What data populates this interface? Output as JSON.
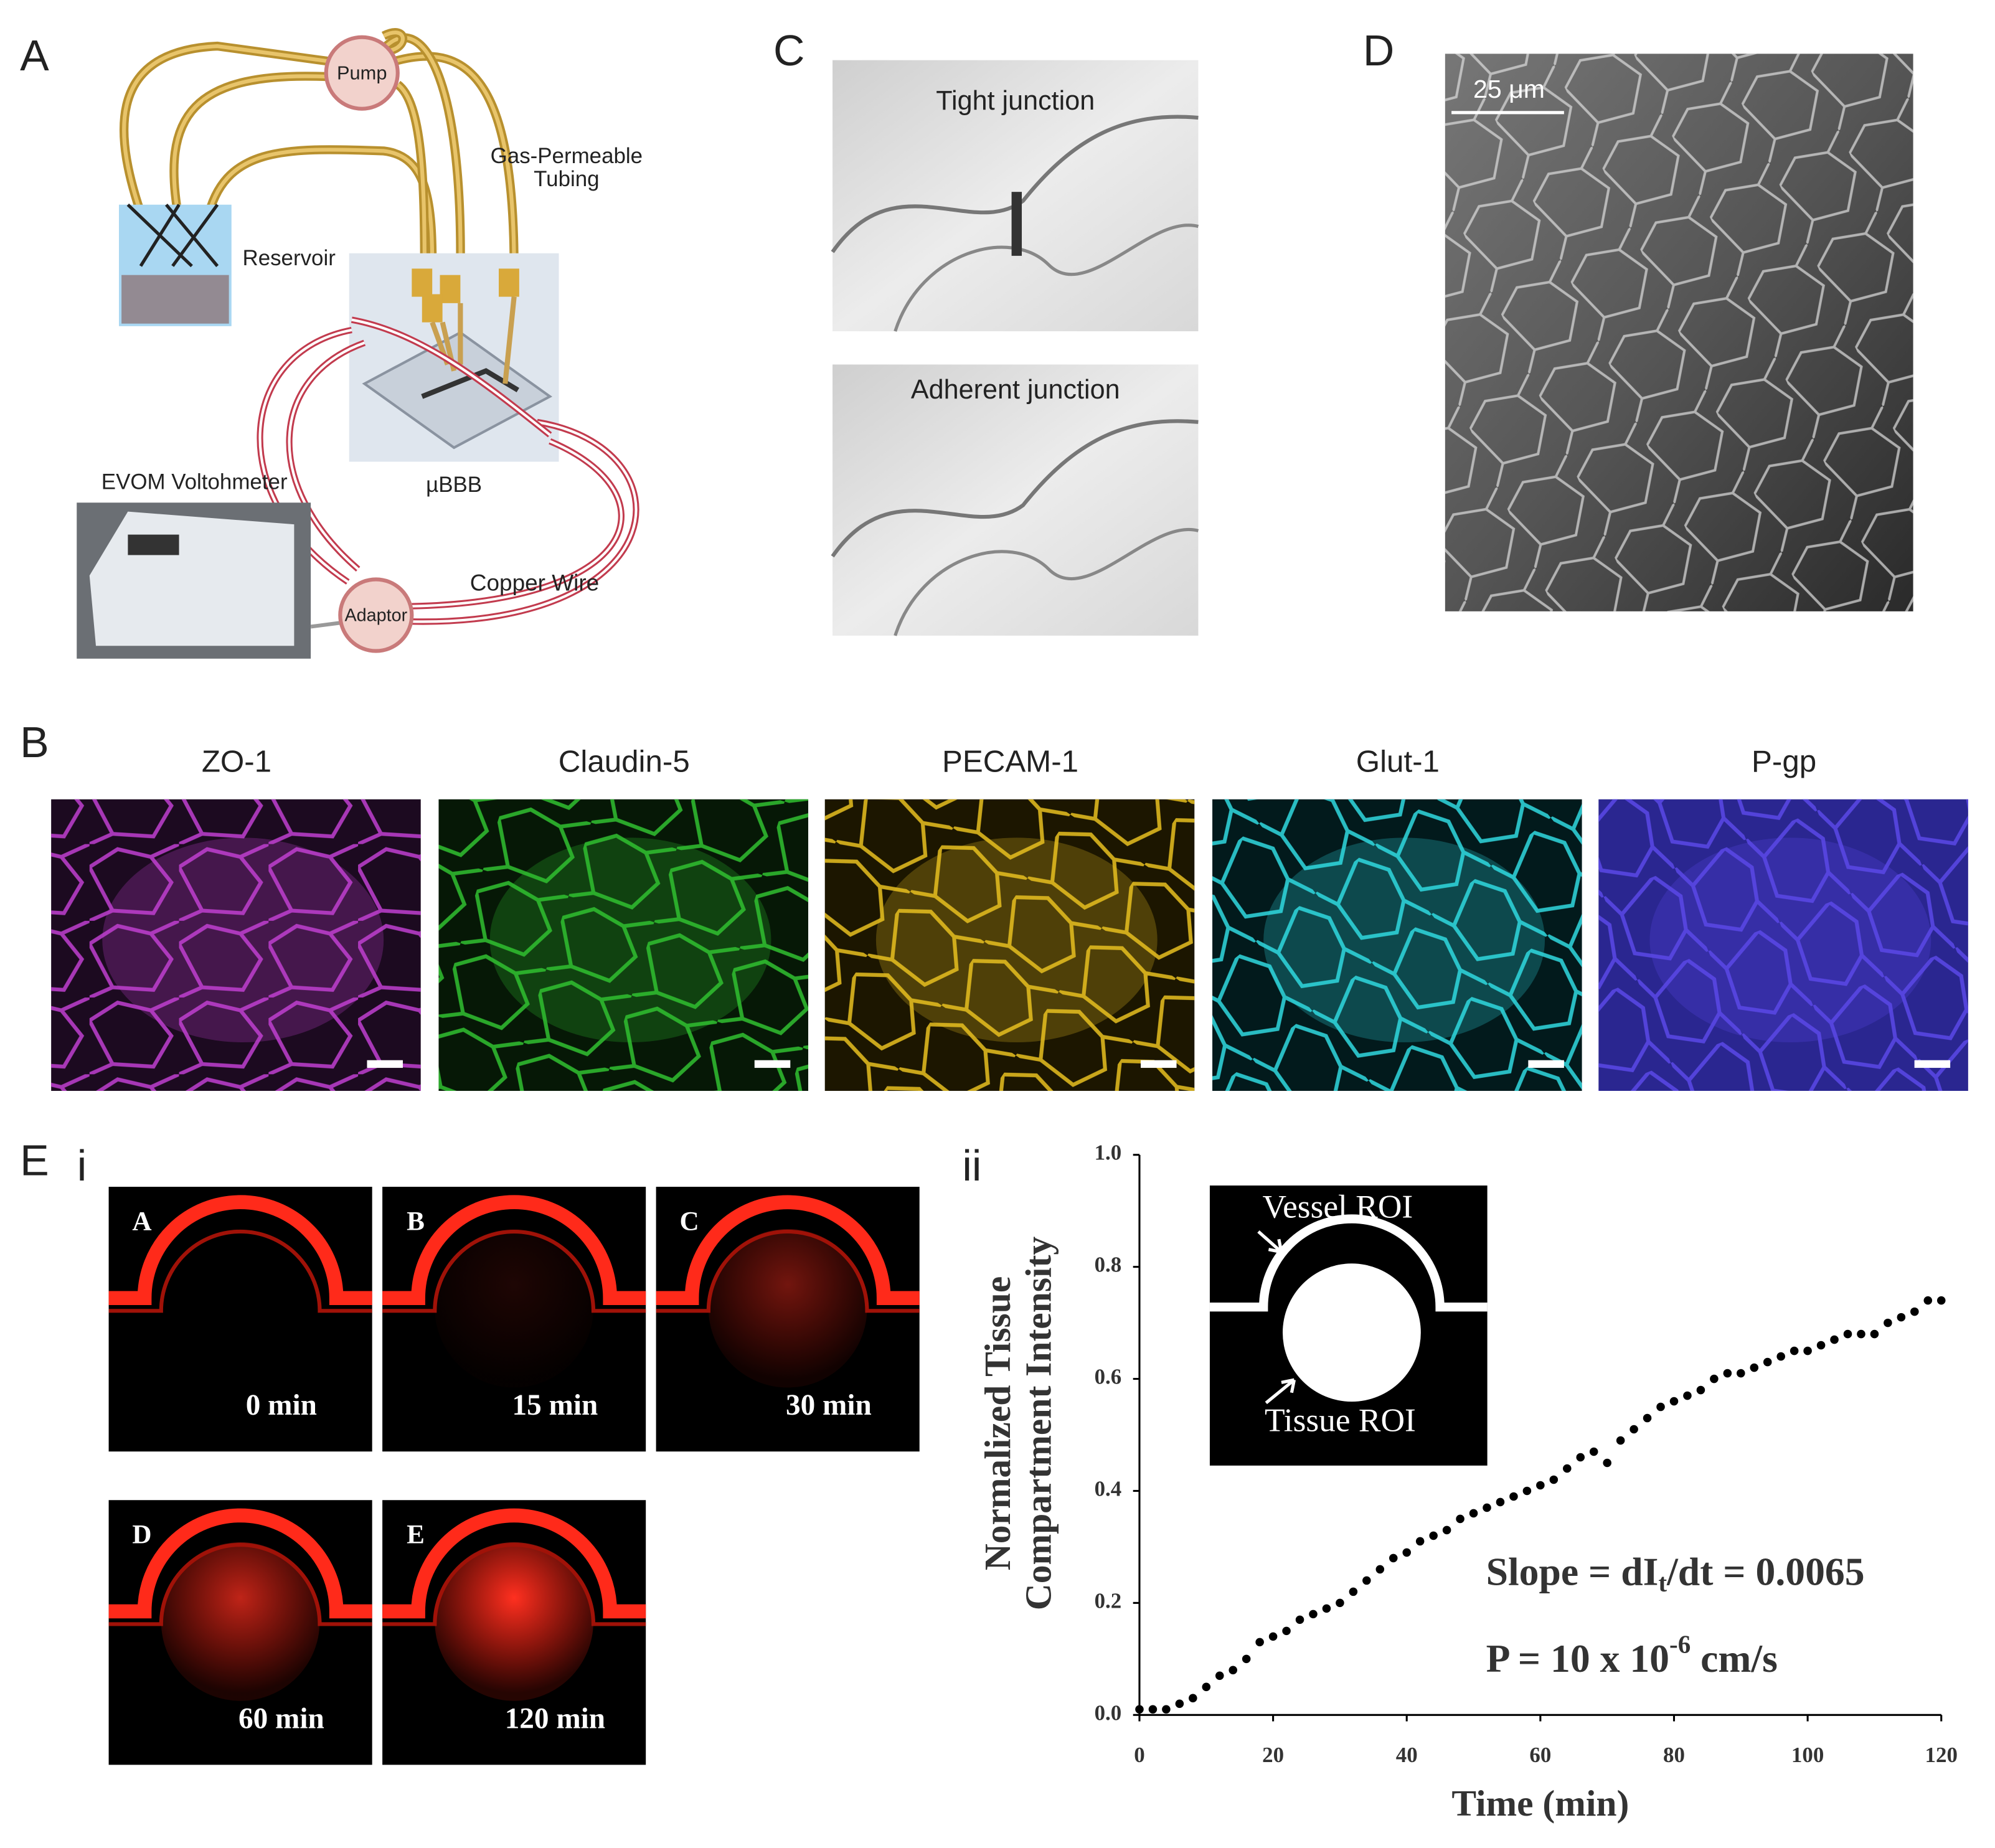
{
  "panels": {
    "A": {
      "label": "A",
      "pump": "Pump",
      "tubing": [
        "Gas-Permeable",
        "Tubing"
      ],
      "reservoir": "Reservoir",
      "device": "µBBB",
      "meter": "EVOM Voltohmeter",
      "wire": "Copper Wire",
      "adaptor": "Adaptor"
    },
    "B": {
      "label": "B",
      "stains": [
        "ZO-1",
        "Claudin-5",
        "PECAM-1",
        "Glut-1",
        "P-gp"
      ]
    },
    "C": {
      "label": "C",
      "images": [
        "Tight junction",
        "Adherent junction"
      ]
    },
    "D": {
      "label": "D",
      "scale_bar": "25 μm"
    },
    "E": {
      "label": "E",
      "sub_i": {
        "label": "i",
        "frames": [
          {
            "letter": "A",
            "time": "0 min"
          },
          {
            "letter": "B",
            "time": "15 min"
          },
          {
            "letter": "C",
            "time": "30 min"
          },
          {
            "letter": "D",
            "time": "60 min"
          },
          {
            "letter": "E",
            "time": "120 min"
          }
        ]
      }
    }
  },
  "chart_data": {
    "type": "scatter",
    "panel_label": "ii",
    "color": "#000000",
    "x_label": "Time (min)",
    "y_label": [
      "Normalized Tissue",
      "Compartment Intensity"
    ],
    "x": [
      0,
      2,
      4,
      6,
      8,
      10,
      12,
      14,
      16,
      18,
      20,
      22,
      24,
      26,
      28,
      30,
      32,
      34,
      36,
      38,
      40,
      42,
      44,
      46,
      48,
      50,
      52,
      54,
      56,
      58,
      60,
      62,
      64,
      66,
      68,
      70,
      72,
      74,
      76,
      78,
      80,
      82,
      84,
      86,
      88,
      90,
      92,
      94,
      96,
      98,
      100,
      102,
      104,
      106,
      108,
      110,
      112,
      114,
      116,
      118,
      120
    ],
    "values": [
      0.01,
      0.01,
      0.01,
      0.02,
      0.03,
      0.05,
      0.07,
      0.08,
      0.1,
      0.13,
      0.14,
      0.15,
      0.17,
      0.18,
      0.19,
      0.2,
      0.22,
      0.24,
      0.26,
      0.28,
      0.29,
      0.31,
      0.32,
      0.33,
      0.35,
      0.36,
      0.37,
      0.38,
      0.39,
      0.4,
      0.41,
      0.42,
      0.44,
      0.46,
      0.47,
      0.45,
      0.49,
      0.51,
      0.53,
      0.55,
      0.56,
      0.57,
      0.58,
      0.6,
      0.61,
      0.61,
      0.62,
      0.63,
      0.64,
      0.65,
      0.65,
      0.66,
      0.67,
      0.68,
      0.68,
      0.68,
      0.7,
      0.71,
      0.72,
      0.74,
      0.74
    ],
    "xlim": [
      0,
      120
    ],
    "ylim": [
      0,
      1
    ],
    "xticks": [
      0,
      20,
      40,
      60,
      80,
      100,
      120
    ],
    "yticks": [
      {
        "value": 0,
        "label": "0.0"
      },
      {
        "value": 0.2,
        "label": "0.2"
      },
      {
        "value": 0.4,
        "label": "0.4"
      },
      {
        "value": 0.6,
        "label": "0.6"
      },
      {
        "value": 0.8,
        "label": "0.8"
      },
      {
        "value": 1,
        "label": "1.0"
      }
    ],
    "annotations": {
      "slope": {
        "before": "Slope = dI",
        "sub": "t",
        "after": "/dt = 0.0065"
      },
      "permeability": {
        "before": "P = 10 x 10",
        "sup": "-6",
        "after": " cm/s"
      }
    },
    "inset": {
      "vessel": "Vessel ROI",
      "tissue": "Tissue ROI"
    }
  }
}
